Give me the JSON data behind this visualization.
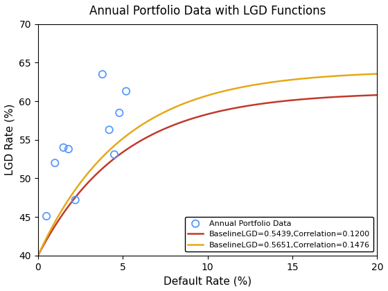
{
  "title": "Annual Portfolio Data with LGD Functions",
  "xlabel": "Default Rate (%)",
  "ylabel": "LGD Rate (%)",
  "xlim": [
    0,
    20
  ],
  "ylim": [
    40,
    70
  ],
  "xticks": [
    0,
    5,
    10,
    15,
    20
  ],
  "yticks": [
    40,
    45,
    50,
    55,
    60,
    65,
    70
  ],
  "scatter_x": [
    0.5,
    1.0,
    1.5,
    1.8,
    2.2,
    3.8,
    4.2,
    4.5,
    4.8,
    5.2
  ],
  "scatter_y": [
    45.1,
    52.0,
    54.0,
    53.8,
    47.2,
    63.5,
    56.3,
    53.1,
    58.5,
    61.3
  ],
  "scatter_color": "#5599ff",
  "scatter_label": "Annual Portfolio Data",
  "line1_label": "BaselineLGD=0.5439,Correlation=0.1200",
  "line1_color": "#c0392b",
  "line1_lgd": 0.5439,
  "line1_rho": 0.12,
  "line2_label": "BaselineLGD=0.5651,Correlation=0.1476",
  "line2_color": "#e6a817",
  "line2_lgd": 0.5651,
  "line2_rho": 0.1476,
  "background_color": "#ffffff",
  "legend_loc": "lower right",
  "title_fontsize": 12,
  "axis_fontsize": 11
}
